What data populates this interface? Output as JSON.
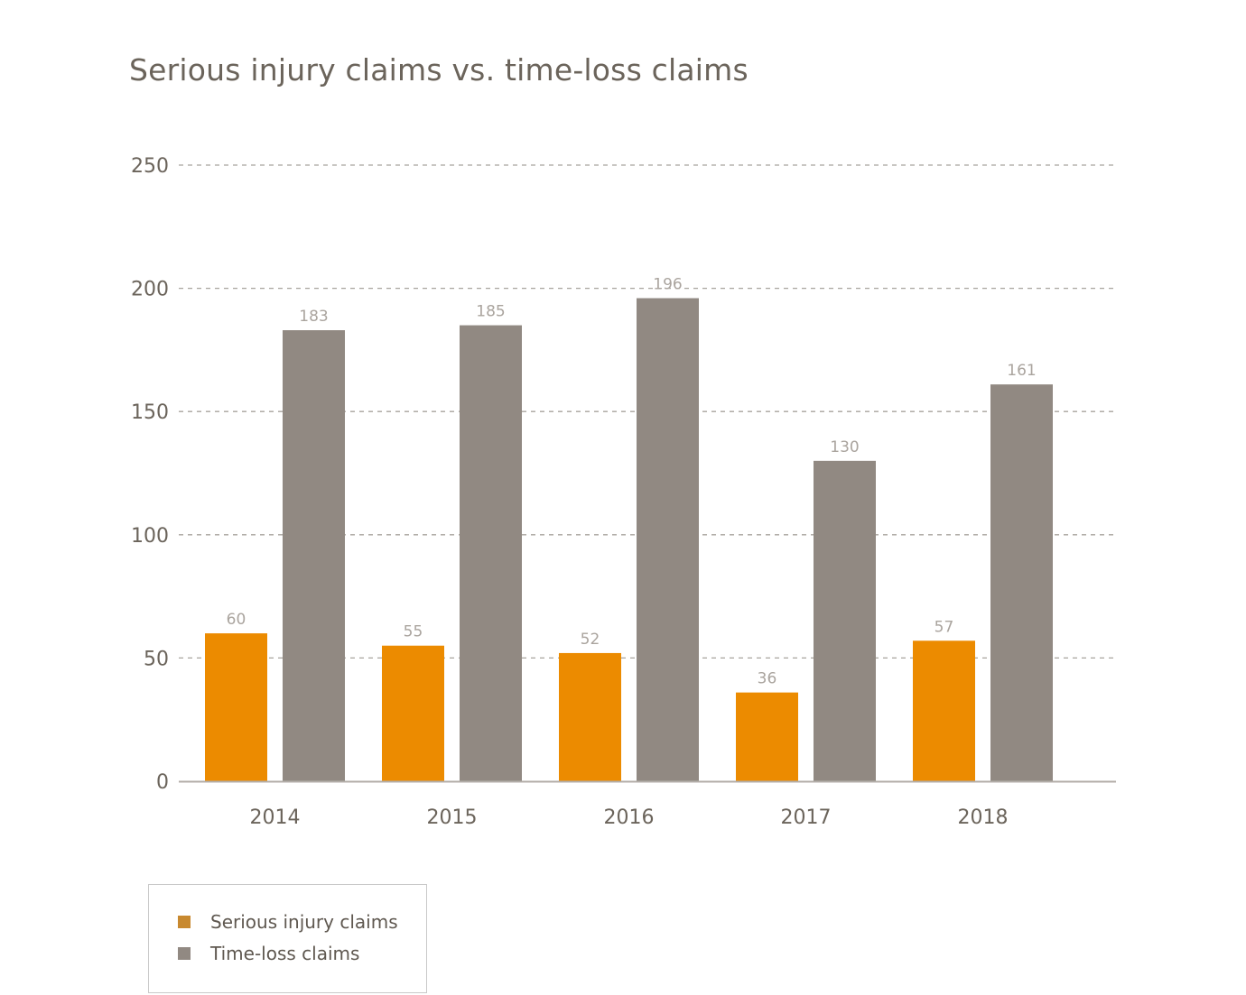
{
  "chart_data": {
    "type": "bar",
    "title": "Serious injury claims vs. time-loss claims",
    "xlabel": "",
    "ylabel": "",
    "categories": [
      "2014",
      "2015",
      "2016",
      "2017",
      "2018"
    ],
    "series": [
      {
        "name": "Serious injury claims",
        "color": "#ec8b00",
        "legend_color": "#c8892f",
        "values": [
          60,
          55,
          52,
          36,
          57
        ]
      },
      {
        "name": "Time-loss claims",
        "color": "#918982",
        "legend_color": "#918982",
        "values": [
          183,
          185,
          196,
          130,
          161
        ]
      }
    ],
    "ylim": [
      0,
      250
    ],
    "yticks": [
      0,
      50,
      100,
      150,
      200,
      250
    ],
    "grid": true,
    "legend_position": "bottom-left",
    "data_labels": true
  }
}
